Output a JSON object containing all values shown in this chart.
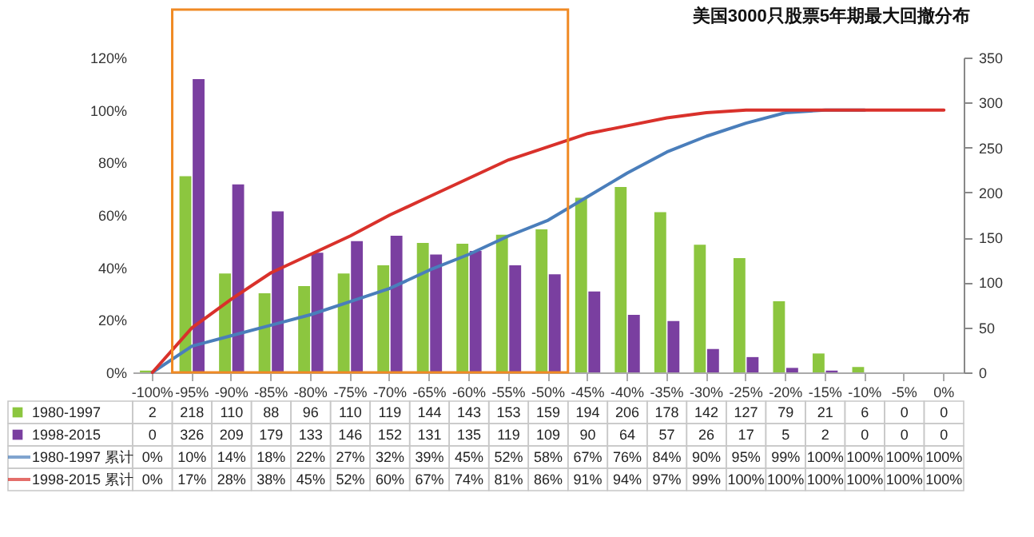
{
  "chart_data": {
    "type": "bar",
    "title": "美国3000只股票5年期最大回撤分布",
    "categories": [
      "-100%",
      "-95%",
      "-90%",
      "-85%",
      "-80%",
      "-75%",
      "-70%",
      "-65%",
      "-60%",
      "-55%",
      "-50%",
      "-45%",
      "-40%",
      "-35%",
      "-30%",
      "-25%",
      "-20%",
      "-15%",
      "-10%",
      "-5%",
      "0%"
    ],
    "series": [
      {
        "name": "1980-1997",
        "axis": "y2",
        "color": "#8cc63f",
        "values": [
          2,
          218,
          110,
          88,
          96,
          110,
          119,
          144,
          143,
          153,
          159,
          194,
          206,
          178,
          142,
          127,
          79,
          21,
          6,
          0,
          0
        ],
        "value_labels": [
          "2",
          "218",
          "110",
          "88",
          "96",
          "110",
          "119",
          "144",
          "143",
          "153",
          "159",
          "194",
          "206",
          "178",
          "142",
          "127",
          "79",
          "21",
          "6",
          "0",
          "0"
        ]
      },
      {
        "name": "1998-2015",
        "axis": "y2",
        "color": "#7a3fa0",
        "values": [
          0,
          326,
          209,
          179,
          133,
          146,
          152,
          131,
          135,
          119,
          109,
          90,
          64,
          57,
          26,
          17,
          5,
          2,
          0,
          0,
          0
        ],
        "value_labels": [
          "0",
          "326",
          "209",
          "179",
          "133",
          "146",
          "152",
          "131",
          "135",
          "119",
          "109",
          "90",
          "64",
          "57",
          "26",
          "17",
          "5",
          "2",
          "0",
          "0",
          "0"
        ]
      },
      {
        "name": "1980-1997 累计",
        "type": "line",
        "axis": "y",
        "color": "#4a7ebb",
        "values": [
          0,
          10,
          14,
          18,
          22,
          27,
          32,
          39,
          45,
          52,
          58,
          67,
          76,
          84,
          90,
          95,
          99,
          100,
          100,
          null,
          null
        ],
        "value_labels": [
          "0%",
          "10%",
          "14%",
          "18%",
          "22%",
          "27%",
          "32%",
          "39%",
          "45%",
          "52%",
          "58%",
          "67%",
          "76%",
          "84%",
          "90%",
          "95%",
          "99%",
          "100%",
          "100%",
          "100%",
          "100%"
        ]
      },
      {
        "name": "1998-2015 累计",
        "type": "line",
        "axis": "y",
        "color": "#d9312b",
        "values": [
          0,
          17,
          28,
          38,
          45,
          52,
          60,
          67,
          74,
          81,
          86,
          91,
          94,
          97,
          99,
          100,
          100,
          100,
          100,
          100,
          100
        ],
        "value_labels": [
          "0%",
          "17%",
          "28%",
          "38%",
          "45%",
          "52%",
          "60%",
          "67%",
          "74%",
          "81%",
          "86%",
          "91%",
          "94%",
          "97%",
          "99%",
          "100%",
          "100%",
          "100%",
          "100%",
          "100%",
          "100%"
        ]
      }
    ],
    "ylim": [
      0,
      120
    ],
    "yticks": [
      {
        "value": 0,
        "label": "0%"
      },
      {
        "value": 20,
        "label": "20%"
      },
      {
        "value": 40,
        "label": "40%"
      },
      {
        "value": 60,
        "label": "60%"
      },
      {
        "value": 80,
        "label": "80%"
      },
      {
        "value": 100,
        "label": "100%"
      },
      {
        "value": 120,
        "label": "120%"
      }
    ],
    "y2lim": [
      0,
      350
    ],
    "y2ticks": [
      0,
      50,
      100,
      150,
      200,
      250,
      300,
      350
    ],
    "grid": false,
    "legend": "bottom left",
    "marker": "none",
    "line_style": "solid"
  }
}
